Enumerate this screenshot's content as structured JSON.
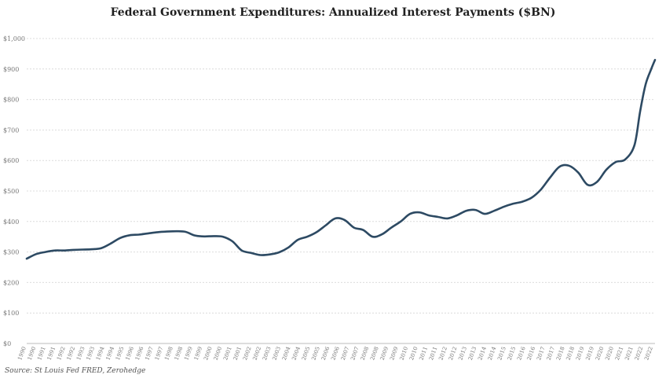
{
  "title": "Federal Government Expenditures: Annualized Interest Payments ($BN)",
  "source": "Source: St Louis Fed FRED, Zerohedge",
  "colors": {
    "line": "#2d4a63",
    "grid": "#dcdcdc",
    "axis": "#bbbbbb"
  },
  "chart_data": {
    "type": "line",
    "title": "Federal Government Expenditures: Annualized Interest Payments ($BN)",
    "xlabel": "",
    "ylabel": "",
    "ylim": [
      0,
      1000
    ],
    "xlim": [
      1990,
      2023.6
    ],
    "grid": true,
    "y_ticks": [
      0,
      100,
      200,
      300,
      400,
      500,
      600,
      700,
      800,
      900,
      1000
    ],
    "y_tick_labels": [
      "$0",
      "$100",
      "$200",
      "$300",
      "$400",
      "$500",
      "$600",
      "$700",
      "$800",
      "$900",
      "$1,000"
    ],
    "x_tick_labels": [
      "1990",
      "1990",
      "1991",
      "1991",
      "1992",
      "1992",
      "1993",
      "1993",
      "1994",
      "1994",
      "1995",
      "1996",
      "1996",
      "1997",
      "1997",
      "1998",
      "1998",
      "1999",
      "1999",
      "2000",
      "2000",
      "2001",
      "2001",
      "2002",
      "2002",
      "2003",
      "2003",
      "2004",
      "2004",
      "2005",
      "2005",
      "2006",
      "2006",
      "2007",
      "2007",
      "2008",
      "2008",
      "2009",
      "2009",
      "2010",
      "2010",
      "2011",
      "2011",
      "2012",
      "2012",
      "2013",
      "2013",
      "2014",
      "2014",
      "2015",
      "2015",
      "2016",
      "2016",
      "2017",
      "2017",
      "2018",
      "2018",
      "2019",
      "2019",
      "2020",
      "2020",
      "2021",
      "2021",
      "2022",
      "2022"
    ],
    "series": [
      {
        "x": [
          1990.0,
          1990.5,
          1991.0,
          1991.5,
          1992.0,
          1992.5,
          1993.0,
          1993.5,
          1994.0,
          1994.5,
          1995.0,
          1995.5,
          1996.0,
          1996.5,
          1997.0,
          1997.5,
          1998.0,
          1998.5,
          1999.0,
          1999.5,
          2000.0,
          2000.5,
          2001.0,
          2001.5,
          2002.0,
          2002.5,
          2003.0,
          2003.5,
          2004.0,
          2004.5,
          2005.0,
          2005.5,
          2006.0,
          2006.5,
          2007.0,
          2007.5,
          2008.0,
          2008.5,
          2009.0,
          2009.5,
          2010.0,
          2010.5,
          2011.0,
          2011.5,
          2012.0,
          2012.5,
          2013.0,
          2013.5,
          2014.0,
          2014.5,
          2015.0,
          2015.5,
          2016.0,
          2016.5,
          2017.0,
          2017.5,
          2018.0,
          2018.5,
          2019.0,
          2019.5,
          2020.0,
          2020.5,
          2021.0,
          2021.5,
          2022.0,
          2022.5,
          2022.8,
          2023.1,
          2023.4,
          2023.6
        ],
        "values": [
          278,
          293,
          300,
          305,
          305,
          307,
          308,
          309,
          313,
          328,
          346,
          355,
          357,
          361,
          365,
          367,
          368,
          366,
          354,
          351,
          352,
          350,
          335,
          305,
          297,
          290,
          292,
          299,
          315,
          340,
          350,
          365,
          388,
          410,
          405,
          380,
          372,
          350,
          358,
          380,
          400,
          425,
          430,
          420,
          415,
          410,
          420,
          435,
          438,
          425,
          435,
          448,
          458,
          465,
          478,
          505,
          545,
          580,
          583,
          560,
          520,
          530,
          570,
          595,
          603,
          650,
          760,
          850,
          900,
          930
        ]
      }
    ]
  }
}
